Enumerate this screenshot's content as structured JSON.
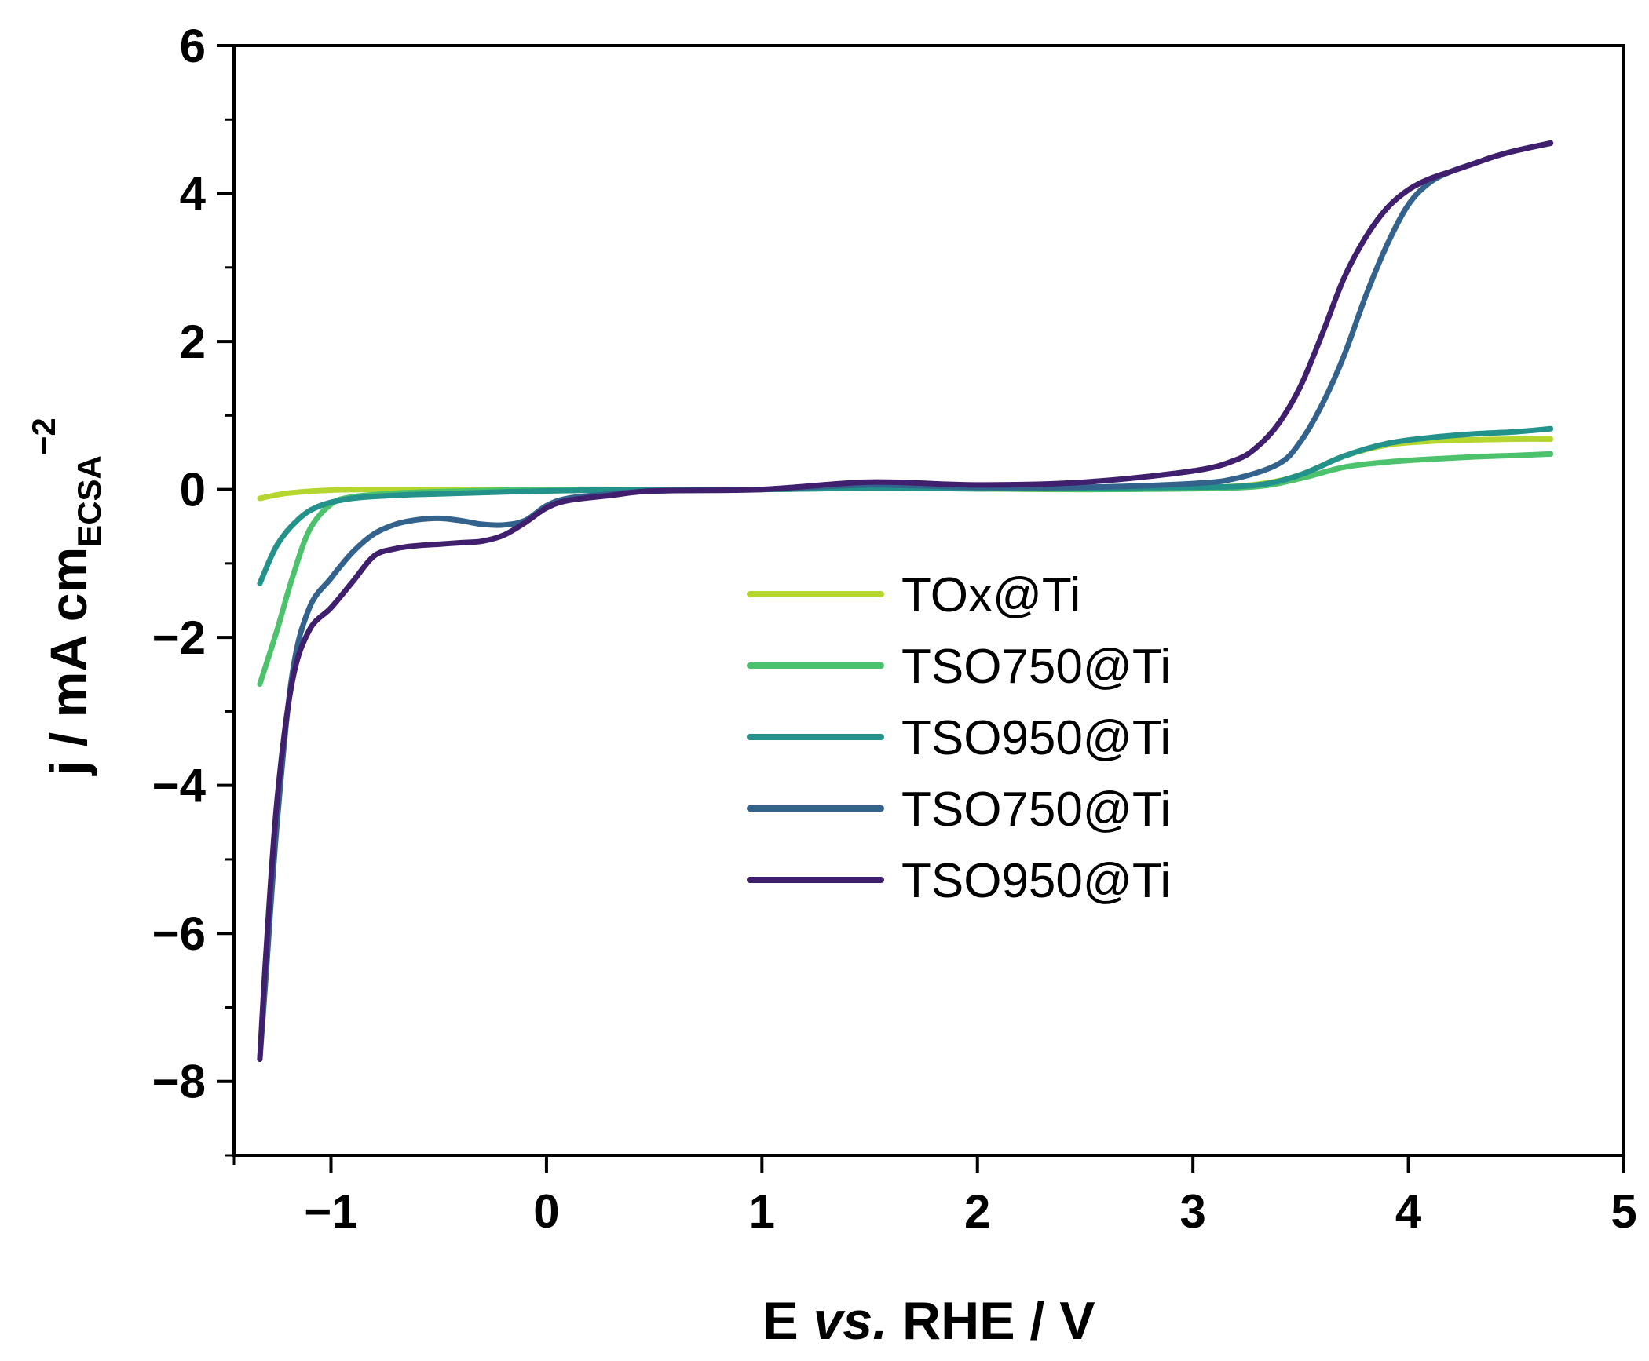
{
  "chart_data": {
    "type": "line",
    "title": "",
    "xlabel": {
      "prefix": "E ",
      "italic": "vs.",
      "suffix": " RHE / V"
    },
    "ylabel": {
      "main": "j / mA cm",
      "subscript": "ECSA",
      "superscript": "−2"
    },
    "xlim": [
      -1.45,
      5
    ],
    "ylim": [
      -9,
      6
    ],
    "xticks": [
      -1,
      0,
      1,
      2,
      3,
      4,
      5
    ],
    "xtick_labels": [
      "−1",
      "0",
      "1",
      "2",
      "3",
      "4",
      "5"
    ],
    "yticks": [
      -8,
      -6,
      -4,
      -2,
      0,
      2,
      4,
      6
    ],
    "ytick_labels": [
      "−8",
      "−6",
      "−4",
      "−2",
      "0",
      "2",
      "4",
      "6"
    ],
    "grid": false,
    "legend_position": "center",
    "series": [
      {
        "name": "TOx@Ti",
        "color": "#b5d62e",
        "x": [
          -1.33,
          -1.2,
          -1.0,
          -0.8,
          -0.5,
          0.0,
          0.5,
          1.0,
          1.5,
          2.0,
          2.5,
          3.0,
          3.3,
          3.5,
          3.7,
          3.9,
          4.1,
          4.3,
          4.5,
          4.66
        ],
        "y": [
          -0.12,
          -0.05,
          -0.01,
          0.0,
          0.0,
          0.0,
          0.0,
          0.0,
          0.02,
          0.01,
          0.0,
          0.02,
          0.07,
          0.2,
          0.45,
          0.6,
          0.65,
          0.67,
          0.68,
          0.68
        ]
      },
      {
        "name": "TSO750@Ti",
        "color": "#4cc26c",
        "x": [
          -1.33,
          -1.25,
          -1.18,
          -1.1,
          -1.0,
          -0.9,
          -0.7,
          -0.5,
          0.0,
          0.5,
          1.0,
          1.5,
          2.0,
          2.5,
          3.0,
          3.3,
          3.5,
          3.7,
          3.9,
          4.1,
          4.3,
          4.5,
          4.66
        ],
        "y": [
          -2.63,
          -1.9,
          -1.2,
          -0.55,
          -0.2,
          -0.1,
          -0.05,
          -0.03,
          0.0,
          0.0,
          0.0,
          0.02,
          0.01,
          0.0,
          0.01,
          0.04,
          0.15,
          0.3,
          0.37,
          0.41,
          0.44,
          0.46,
          0.48
        ]
      },
      {
        "name": "TSO950@Ti",
        "color": "#23928b",
        "x": [
          -1.33,
          -1.25,
          -1.15,
          -1.05,
          -0.9,
          -0.7,
          -0.5,
          0.0,
          0.5,
          1.0,
          1.5,
          2.0,
          2.5,
          3.0,
          3.3,
          3.5,
          3.7,
          3.9,
          4.1,
          4.3,
          4.5,
          4.66
        ],
        "y": [
          -1.27,
          -0.75,
          -0.4,
          -0.22,
          -0.12,
          -0.08,
          -0.06,
          -0.02,
          0.0,
          0.0,
          0.02,
          0.01,
          0.02,
          0.03,
          0.06,
          0.2,
          0.45,
          0.62,
          0.7,
          0.75,
          0.78,
          0.82
        ]
      },
      {
        "name": "TSO750@Ti",
        "color": "#33638d",
        "x": [
          -1.33,
          -1.3,
          -1.25,
          -1.18,
          -1.1,
          -1.0,
          -0.9,
          -0.8,
          -0.7,
          -0.6,
          -0.5,
          -0.4,
          -0.3,
          -0.2,
          -0.1,
          0.0,
          0.1,
          0.3,
          0.5,
          1.0,
          1.5,
          2.0,
          2.5,
          3.0,
          3.2,
          3.4,
          3.5,
          3.6,
          3.7,
          3.8,
          3.9,
          4.0,
          4.1,
          4.2,
          4.3,
          4.4,
          4.5,
          4.66
        ],
        "y": [
          -7.7,
          -6.5,
          -4.5,
          -2.5,
          -1.6,
          -1.2,
          -0.85,
          -0.6,
          -0.47,
          -0.41,
          -0.39,
          -0.42,
          -0.47,
          -0.48,
          -0.42,
          -0.22,
          -0.12,
          -0.06,
          -0.02,
          0.0,
          0.06,
          0.03,
          0.03,
          0.08,
          0.15,
          0.35,
          0.65,
          1.15,
          1.8,
          2.6,
          3.3,
          3.85,
          4.15,
          4.3,
          4.4,
          4.5,
          4.58,
          4.68
        ]
      },
      {
        "name": "TSO950@Ti",
        "color": "#3f1f6e",
        "x": [
          -1.33,
          -1.3,
          -1.25,
          -1.18,
          -1.1,
          -1.0,
          -0.9,
          -0.8,
          -0.7,
          -0.6,
          -0.5,
          -0.4,
          -0.3,
          -0.2,
          -0.1,
          0.0,
          0.1,
          0.3,
          0.5,
          1.0,
          1.5,
          2.0,
          2.5,
          3.0,
          3.2,
          3.3,
          3.4,
          3.5,
          3.6,
          3.7,
          3.8,
          3.9,
          4.0,
          4.1,
          4.2,
          4.3,
          4.4,
          4.5,
          4.66
        ],
        "y": [
          -7.7,
          -6.2,
          -4.2,
          -2.6,
          -1.9,
          -1.6,
          -1.25,
          -0.9,
          -0.8,
          -0.76,
          -0.74,
          -0.72,
          -0.7,
          -0.62,
          -0.45,
          -0.25,
          -0.15,
          -0.08,
          -0.02,
          0.0,
          0.1,
          0.06,
          0.1,
          0.25,
          0.4,
          0.58,
          0.9,
          1.4,
          2.1,
          2.85,
          3.4,
          3.8,
          4.05,
          4.2,
          4.3,
          4.4,
          4.5,
          4.58,
          4.68
        ]
      }
    ]
  }
}
